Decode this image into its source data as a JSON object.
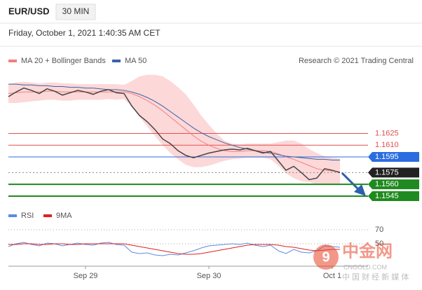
{
  "header": {
    "symbol": "EUR/USD",
    "interval": "30 MIN",
    "datetime": "Friday, October 1, 2021 1:40:35 AM CET",
    "credit": "Research © 2021 Trading Central"
  },
  "watermark": {
    "brand": "中金网",
    "site": "CNGOLD.COM",
    "tagline": "中 国 财 经 新 媒 体"
  },
  "chart_data": [
    {
      "type": "line",
      "values": [
        1.1672,
        1.1678,
        1.1683,
        1.168,
        1.1676,
        1.1682,
        1.1679,
        1.1674,
        1.1677,
        1.168,
        1.1678,
        1.1675,
        1.1679,
        1.1681,
        1.1677,
        1.1676,
        1.166,
        1.1648,
        1.164,
        1.163,
        1.1618,
        1.1612,
        1.1603,
        1.1597,
        1.1594,
        1.1597,
        1.16,
        1.1602,
        1.1604,
        1.1605,
        1.1604,
        1.1606,
        1.1603,
        1.16,
        1.1602,
        1.159,
        1.1578,
        1.1583,
        1.1575,
        1.1566,
        1.1568,
        1.158,
        1.1578,
        1.1575
      ],
      "color": "#444444",
      "series": [
        {
          "name": "MA 20 + Bollinger Bands",
          "color": "#f08080",
          "band_color": "#fdd8d8",
          "values": [
            1.1676,
            1.1677,
            1.1678,
            1.1678,
            1.1678,
            1.1679,
            1.1679,
            1.1678,
            1.1678,
            1.1678,
            1.1678,
            1.1678,
            1.1678,
            1.1678,
            1.1678,
            1.1678,
            1.1676,
            1.1672,
            1.1667,
            1.1661,
            1.1654,
            1.1646,
            1.1638,
            1.163,
            1.1622,
            1.1615,
            1.161,
            1.1606,
            1.1603,
            1.1602,
            1.1602,
            1.1603,
            1.1603,
            1.1603,
            1.1602,
            1.1599,
            1.1595,
            1.1592,
            1.1588,
            1.1584,
            1.158,
            1.1578,
            1.1577,
            1.1576
          ],
          "upper": [
            1.1688,
            1.169,
            1.1691,
            1.169,
            1.1689,
            1.169,
            1.169,
            1.1689,
            1.1689,
            1.1688,
            1.1688,
            1.1688,
            1.1688,
            1.1688,
            1.1688,
            1.1687,
            1.1692,
            1.1698,
            1.17,
            1.17,
            1.1698,
            1.1692,
            1.1684,
            1.1675,
            1.1662,
            1.1648,
            1.1636,
            1.1625,
            1.1616,
            1.1612,
            1.1611,
            1.1612,
            1.1612,
            1.1612,
            1.1612,
            1.1614,
            1.1616,
            1.1616,
            1.1612,
            1.1605,
            1.16,
            1.1596,
            1.1594,
            1.1593
          ],
          "lower": [
            1.1664,
            1.1664,
            1.1665,
            1.1666,
            1.1667,
            1.1668,
            1.1668,
            1.1667,
            1.1667,
            1.1668,
            1.1668,
            1.1668,
            1.1668,
            1.1669,
            1.1668,
            1.1669,
            1.166,
            1.1646,
            1.1634,
            1.1622,
            1.161,
            1.16,
            1.1592,
            1.1585,
            1.1582,
            1.1582,
            1.1584,
            1.1587,
            1.159,
            1.1592,
            1.1593,
            1.1594,
            1.1594,
            1.1594,
            1.1592,
            1.1584,
            1.1574,
            1.1568,
            1.1564,
            1.1563,
            1.156,
            1.156,
            1.156,
            1.1559
          ]
        },
        {
          "name": "MA 50",
          "color": "#3a62a8",
          "values": [
            1.1688,
            1.1688,
            1.1687,
            1.1687,
            1.1686,
            1.1686,
            1.1685,
            1.1685,
            1.1684,
            1.1684,
            1.1683,
            1.1683,
            1.1682,
            1.1681,
            1.1681,
            1.168,
            1.1678,
            1.1675,
            1.1671,
            1.1666,
            1.166,
            1.1653,
            1.1646,
            1.1639,
            1.1632,
            1.1626,
            1.1621,
            1.1617,
            1.1613,
            1.161,
            1.1607,
            1.1605,
            1.1603,
            1.1601,
            1.16,
            1.1598,
            1.1596,
            1.1595,
            1.1594,
            1.1593,
            1.1592,
            1.1592,
            1.1591,
            1.1591
          ]
        }
      ],
      "ylim": [
        1.1536,
        1.1706
      ],
      "levels": [
        {
          "value": 1.1625,
          "color": "#e05050",
          "tag": false,
          "dash": false
        },
        {
          "value": 1.161,
          "label": "1.1610",
          "color": "#e05050",
          "tag": false,
          "dash": false
        },
        {
          "value": 1.1595,
          "color": "#2b6de0",
          "tag": true,
          "dash": false
        },
        {
          "value": 1.1575,
          "color": "#222222",
          "tag": true,
          "dash": true
        },
        {
          "value": 1.156,
          "label": "1.1560",
          "color": "#1f8a1f",
          "tag": true,
          "dash": false
        },
        {
          "value": 1.1545,
          "color": "#1f8a1f",
          "tag": true,
          "dash": false
        }
      ]
    },
    {
      "type": "line",
      "categories": [
        null,
        null,
        null,
        null,
        null,
        null,
        null,
        null,
        null,
        null,
        "Sep 29",
        null,
        null,
        null,
        null,
        null,
        null,
        null,
        null,
        null,
        null,
        null,
        null,
        null,
        null,
        null,
        "Sep 30",
        null,
        null,
        null,
        null,
        null,
        null,
        null,
        null,
        null,
        null,
        null,
        null,
        null,
        null,
        null,
        "Oct 1",
        null
      ],
      "series": [
        {
          "name": "RSI",
          "color": "#5b8ce0",
          "values": [
            46,
            50,
            52,
            49,
            47,
            51,
            50,
            47,
            49,
            51,
            49,
            48,
            51,
            52,
            49,
            48,
            38,
            36,
            37,
            34,
            33,
            35,
            34,
            37,
            40,
            44,
            47,
            48,
            49,
            50,
            49,
            51,
            48,
            46,
            48,
            40,
            36,
            42,
            38,
            37,
            40,
            47,
            46,
            45
          ]
        },
        {
          "name": "9MA",
          "color": "#e02020",
          "values": [
            49,
            49,
            50,
            50,
            49,
            49,
            50,
            50,
            49,
            49,
            50,
            50,
            50,
            50,
            50,
            50,
            48,
            46,
            44,
            42,
            40,
            38,
            36,
            35,
            35,
            36,
            38,
            40,
            42,
            44,
            46,
            48,
            49,
            49,
            49,
            48,
            46,
            45,
            43,
            41,
            40,
            41,
            42,
            42
          ]
        }
      ],
      "ylim": [
        10,
        80
      ],
      "yticks": [
        70,
        50
      ],
      "grid": true
    }
  ]
}
